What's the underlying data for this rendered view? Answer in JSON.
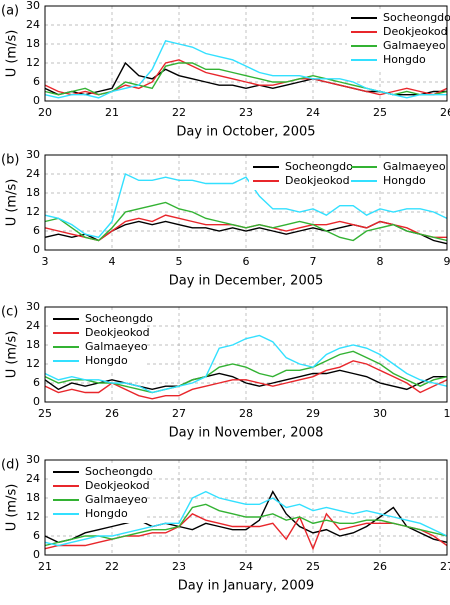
{
  "chart_data": [
    {
      "type": "line",
      "label": "(a)",
      "x_label": "Day in October, 2005",
      "y_label": "U (m/s)",
      "xlim": [
        20,
        26
      ],
      "xticks": [
        20,
        21,
        22,
        23,
        24,
        25,
        26
      ],
      "ylim": [
        0,
        30
      ],
      "yticks": [
        0,
        6,
        12,
        18,
        24,
        30
      ],
      "grid": true,
      "legend": "upper right",
      "legend_columns": 1,
      "x": [
        20,
        20.2,
        20.4,
        20.6,
        20.8,
        21,
        21.2,
        21.4,
        21.6,
        21.8,
        22,
        22.2,
        22.4,
        22.6,
        22.8,
        23,
        23.2,
        23.4,
        23.6,
        23.8,
        24,
        24.2,
        24.4,
        24.6,
        24.8,
        25,
        25.2,
        25.4,
        25.6,
        25.8,
        26
      ],
      "series": [
        {
          "name": "Socheongdo",
          "color": "#000000",
          "values": [
            4,
            2,
            3,
            2,
            3,
            4,
            12,
            8,
            7,
            10,
            8,
            7,
            6,
            5,
            5,
            4,
            5,
            4,
            5,
            6,
            7,
            6,
            5,
            4,
            3,
            3,
            2,
            2,
            2,
            3,
            3
          ]
        },
        {
          "name": "Deokjeokod",
          "color": "#e8262b",
          "values": [
            5,
            3,
            2,
            3,
            2,
            3,
            5,
            4,
            6,
            12,
            13,
            11,
            9,
            8,
            7,
            6,
            5,
            5,
            6,
            7,
            7,
            6,
            5,
            4,
            3,
            2,
            3,
            4,
            3,
            2,
            4
          ]
        },
        {
          "name": "Galmaeyeo",
          "color": "#33b233",
          "values": [
            3,
            2,
            3,
            4,
            2,
            3,
            6,
            5,
            4,
            11,
            12,
            12,
            10,
            10,
            9,
            8,
            7,
            6,
            6,
            7,
            8,
            7,
            6,
            5,
            4,
            3,
            2,
            3,
            2,
            2,
            3
          ]
        },
        {
          "name": "Hongdo",
          "color": "#33e0ff",
          "values": [
            2,
            1,
            2,
            2,
            1,
            3,
            4,
            5,
            10,
            19,
            18,
            17,
            15,
            14,
            13,
            11,
            9,
            8,
            8,
            8,
            7,
            7,
            7,
            6,
            4,
            3,
            2,
            1,
            2,
            2,
            2
          ]
        }
      ]
    },
    {
      "type": "line",
      "label": "(b)",
      "x_label": "Day in December, 2005",
      "y_label": "U (m/s)",
      "xlim": [
        3,
        9
      ],
      "xticks": [
        3,
        4,
        5,
        6,
        7,
        8,
        9
      ],
      "ylim": [
        0,
        30
      ],
      "yticks": [
        0,
        6,
        12,
        18,
        24,
        30
      ],
      "grid": true,
      "legend": "upper right",
      "legend_columns": 2,
      "x": [
        3,
        3.2,
        3.4,
        3.6,
        3.8,
        4,
        4.2,
        4.4,
        4.6,
        4.8,
        5,
        5.2,
        5.4,
        5.6,
        5.8,
        6,
        6.2,
        6.4,
        6.6,
        6.8,
        7,
        7.2,
        7.4,
        7.6,
        7.8,
        8,
        8.2,
        8.4,
        8.6,
        8.8,
        9
      ],
      "series": [
        {
          "name": "Socheongdo",
          "color": "#000000",
          "values": [
            4,
            5,
            4,
            5,
            3,
            6,
            8,
            9,
            8,
            9,
            8,
            7,
            7,
            6,
            7,
            6,
            7,
            6,
            5,
            6,
            7,
            6,
            7,
            8,
            7,
            9,
            8,
            6,
            5,
            3,
            2
          ]
        },
        {
          "name": "Deokjeokod",
          "color": "#e8262b",
          "values": [
            7,
            6,
            5,
            4,
            3,
            6,
            9,
            10,
            9,
            11,
            10,
            9,
            8,
            8,
            8,
            7,
            8,
            7,
            6,
            7,
            8,
            8,
            9,
            8,
            7,
            9,
            8,
            7,
            5,
            4,
            4
          ]
        },
        {
          "name": "Galmaeyeo",
          "color": "#33b233",
          "values": [
            9,
            10,
            7,
            4,
            3,
            7,
            12,
            13,
            14,
            15,
            13,
            12,
            10,
            9,
            8,
            7,
            8,
            7,
            8,
            9,
            8,
            6,
            4,
            3,
            6,
            7,
            8,
            6,
            5,
            4,
            3
          ]
        },
        {
          "name": "Hongdo",
          "color": "#33e0ff",
          "values": [
            11,
            10,
            8,
            5,
            4,
            9,
            24,
            22,
            22,
            23,
            22,
            22,
            21,
            21,
            21,
            23,
            17,
            13,
            13,
            12,
            13,
            11,
            14,
            14,
            11,
            13,
            12,
            13,
            13,
            12,
            10
          ]
        }
      ]
    },
    {
      "type": "line",
      "label": "(c)",
      "x_label": "Day in November, 2008",
      "y_label": "U (m/s)",
      "xlim": [
        25,
        31
      ],
      "xticks": [
        25,
        26,
        27,
        28,
        29,
        30,
        {
          "value": 31,
          "label": "1"
        }
      ],
      "ylim": [
        0,
        30
      ],
      "yticks": [
        0,
        6,
        12,
        18,
        24,
        30
      ],
      "grid": true,
      "legend": "upper left",
      "legend_columns": 1,
      "x": [
        25,
        25.2,
        25.4,
        25.6,
        25.8,
        26,
        26.2,
        26.4,
        26.6,
        26.8,
        27,
        27.2,
        27.4,
        27.6,
        27.8,
        28,
        28.2,
        28.4,
        28.6,
        28.8,
        29,
        29.2,
        29.4,
        29.6,
        29.8,
        30,
        30.2,
        30.4,
        30.6,
        30.8,
        31
      ],
      "series": [
        {
          "name": "Socheongdo",
          "color": "#000000",
          "values": [
            7,
            4,
            6,
            5,
            6,
            7,
            6,
            5,
            4,
            5,
            5,
            7,
            8,
            9,
            8,
            6,
            5,
            6,
            7,
            8,
            9,
            9,
            10,
            9,
            8,
            6,
            5,
            4,
            6,
            8,
            8
          ]
        },
        {
          "name": "Deokjeokod",
          "color": "#e8262b",
          "values": [
            5,
            3,
            4,
            3,
            3,
            6,
            4,
            2,
            1,
            2,
            2,
            4,
            5,
            6,
            7,
            7,
            6,
            5,
            6,
            7,
            8,
            10,
            11,
            13,
            12,
            10,
            8,
            6,
            3,
            5,
            7
          ]
        },
        {
          "name": "Galmaeyeo",
          "color": "#33b233",
          "values": [
            8,
            6,
            7,
            7,
            6,
            6,
            5,
            4,
            3,
            4,
            5,
            7,
            8,
            11,
            12,
            11,
            9,
            8,
            10,
            10,
            11,
            13,
            15,
            16,
            14,
            12,
            9,
            7,
            5,
            7,
            8
          ]
        },
        {
          "name": "Hongdo",
          "color": "#33e0ff",
          "values": [
            9,
            7,
            8,
            7,
            7,
            6,
            6,
            5,
            3,
            4,
            5,
            6,
            8,
            17,
            18,
            20,
            21,
            19,
            14,
            12,
            11,
            15,
            17,
            18,
            17,
            15,
            12,
            9,
            7,
            6,
            5
          ]
        }
      ]
    },
    {
      "type": "line",
      "label": "(d)",
      "x_label": "Day in January, 2009",
      "y_label": "U (m/s)",
      "xlim": [
        21,
        27
      ],
      "xticks": [
        21,
        22,
        23,
        24,
        25,
        26,
        27
      ],
      "ylim": [
        0,
        30
      ],
      "yticks": [
        0,
        6,
        12,
        18,
        24,
        30
      ],
      "grid": true,
      "legend": "upper left",
      "legend_columns": 1,
      "x": [
        21,
        21.2,
        21.4,
        21.6,
        21.8,
        22,
        22.2,
        22.4,
        22.6,
        22.8,
        23,
        23.2,
        23.4,
        23.6,
        23.8,
        24,
        24.2,
        24.4,
        24.6,
        24.8,
        25,
        25.2,
        25.4,
        25.6,
        25.8,
        26,
        26.2,
        26.4,
        26.6,
        26.8,
        27
      ],
      "series": [
        {
          "name": "Socheongdo",
          "color": "#000000",
          "values": [
            6,
            4,
            5,
            7,
            8,
            9,
            10,
            11,
            9,
            10,
            9,
            8,
            10,
            9,
            8,
            8,
            11,
            20,
            13,
            9,
            7,
            8,
            6,
            7,
            9,
            12,
            15,
            9,
            7,
            5,
            4
          ]
        },
        {
          "name": "Deokjeokod",
          "color": "#e8262b",
          "values": [
            2,
            3,
            3,
            3,
            4,
            5,
            6,
            6,
            7,
            7,
            9,
            13,
            11,
            10,
            9,
            9,
            9,
            10,
            5,
            12,
            2,
            13,
            8,
            9,
            10,
            10,
            10,
            9,
            8,
            6,
            3
          ]
        },
        {
          "name": "Galmaeyeo",
          "color": "#33b233",
          "values": [
            3,
            4,
            5,
            6,
            6,
            5,
            6,
            7,
            8,
            8,
            9,
            15,
            16,
            14,
            13,
            12,
            12,
            13,
            11,
            12,
            10,
            11,
            10,
            10,
            11,
            11,
            10,
            9,
            8,
            7,
            6
          ]
        },
        {
          "name": "Hongdo",
          "color": "#33e0ff",
          "values": [
            4,
            3,
            4,
            5,
            6,
            6,
            7,
            8,
            9,
            10,
            10,
            18,
            20,
            18,
            17,
            16,
            16,
            18,
            15,
            16,
            14,
            15,
            14,
            13,
            14,
            13,
            12,
            11,
            10,
            8,
            6
          ]
        }
      ]
    }
  ]
}
